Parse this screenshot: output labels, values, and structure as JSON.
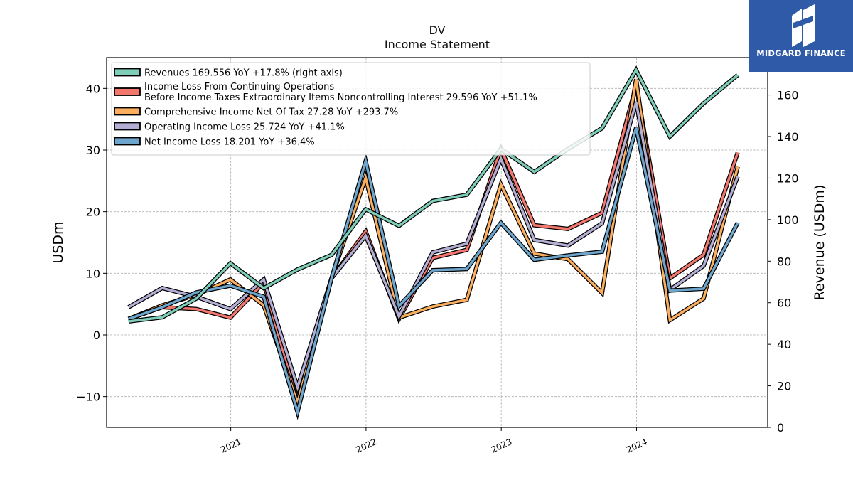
{
  "brand": {
    "name": "MIDGARD FINANCE",
    "icon": "midgard-logo-icon",
    "color": "#2f5aa8"
  },
  "chart_data": {
    "type": "line",
    "title": "DV",
    "subtitle": "Income Statement",
    "ylabel": "USDm",
    "ylabel_right": "Revenue (USDm)",
    "ylim": [
      -15,
      45
    ],
    "ylim_right": [
      0,
      178
    ],
    "yticks": [
      -10,
      0,
      10,
      20,
      30,
      40
    ],
    "yticks_right": [
      0,
      20,
      40,
      60,
      80,
      100,
      120,
      140,
      160
    ],
    "xlim": [
      "2020-02-01",
      "2024-12-20"
    ],
    "xticks": [
      "2021",
      "2022",
      "2023",
      "2024"
    ],
    "grid": true,
    "legend_position": "top-left",
    "x": [
      "2020-03-31",
      "2020-06-30",
      "2020-09-30",
      "2020-12-31",
      "2021-03-31",
      "2021-06-30",
      "2021-09-30",
      "2021-12-31",
      "2022-03-31",
      "2022-06-30",
      "2022-09-30",
      "2022-12-31",
      "2023-03-31",
      "2023-06-30",
      "2023-09-30",
      "2023-12-31",
      "2024-03-31",
      "2024-06-30",
      "2024-09-30"
    ],
    "series": [
      {
        "name": "Income Loss From Continuing Operations\nBefore Income Taxes Extraordinary Items Noncontrolling Interest",
        "summary": "29.596 YoY +51.1%",
        "color": "#f4776d",
        "axis": "left",
        "values": [
          2.6,
          4.5,
          4.2,
          2.8,
          8.5,
          -11,
          9.2,
          16.8,
          2.6,
          12.5,
          13.8,
          30.2,
          17.8,
          17.2,
          19.8,
          40.5,
          9.2,
          13.0,
          29.6
        ]
      },
      {
        "name": "Comprehensive Income Net Of Tax",
        "summary": "27.28 YoY +293.7%",
        "color": "#fbae5e",
        "axis": "left",
        "values": [
          2.6,
          4.8,
          6.5,
          9.0,
          4.8,
          -11,
          9.2,
          25.5,
          2.8,
          4.6,
          5.7,
          24.4,
          13.2,
          12.3,
          6.8,
          41.5,
          2.4,
          5.9,
          27.3
        ]
      },
      {
        "name": "Operating Income Loss",
        "summary": "25.724 YoY +41.1%",
        "color": "#b3aed3",
        "axis": "left",
        "values": [
          4.5,
          7.6,
          6.2,
          4.2,
          9.0,
          -8.5,
          9.2,
          16.1,
          3.0,
          13.4,
          14.8,
          28.6,
          15.4,
          14.5,
          18.1,
          37.8,
          7.3,
          11.2,
          25.7
        ]
      },
      {
        "name": "Net Income Loss",
        "summary": "18.201 YoY +36.4%",
        "color": "#6da5cc",
        "axis": "left",
        "values": [
          2.6,
          4.5,
          6.9,
          8.0,
          6.2,
          -12.5,
          9.2,
          28.2,
          4.7,
          10.5,
          10.7,
          18.2,
          12.2,
          12.9,
          13.5,
          33.6,
          7.2,
          7.5,
          18.2
        ]
      },
      {
        "name": "Revenues",
        "summary": "169.556 YoY +17.8% (right axis)",
        "color": "#7ecdb9",
        "axis": "right",
        "values": [
          51,
          53,
          62,
          79,
          67,
          76,
          83,
          105,
          97,
          109,
          112,
          134,
          123,
          134,
          144,
          172,
          140,
          156,
          169.6
        ]
      }
    ],
    "legend_order": [
      "Revenues",
      "Income Loss From Continuing Operations\nBefore Income Taxes Extraordinary Items Noncontrolling Interest",
      "Comprehensive Income Net Of Tax",
      "Operating Income Loss",
      "Net Income Loss"
    ]
  }
}
